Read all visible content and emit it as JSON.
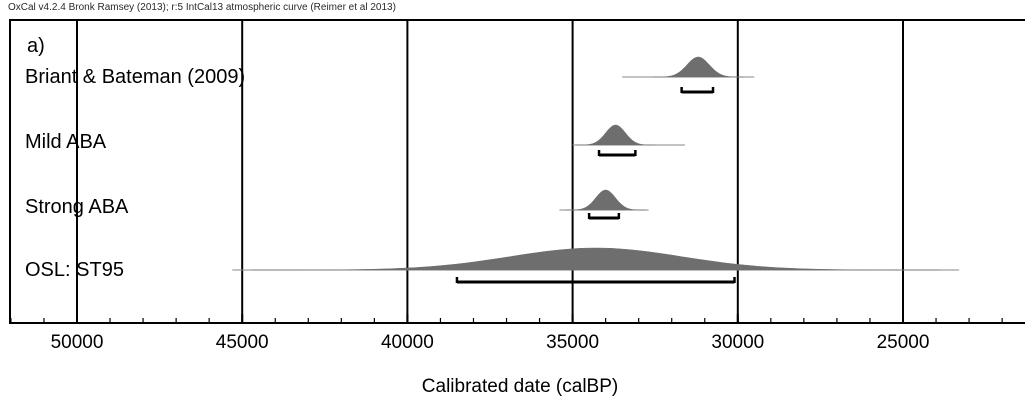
{
  "header": "OxCal v4.2.4 Bronk Ramsey (2013); r:5 IntCal13 atmospheric curve (Reimer et al 2013)",
  "panel_label": "a)",
  "chart_data": {
    "type": "ridge",
    "xlabel": "Calibrated date (calBP)",
    "xlim": [
      52000,
      21500
    ],
    "x_reversed": true,
    "major_ticks": [
      50000,
      45000,
      40000,
      35000,
      30000,
      25000
    ],
    "minor_tick_step": 1000,
    "grid": "vertical-major",
    "distributions": [
      {
        "name": "Briant & Bateman (2009)",
        "mean": 31200,
        "sd": 340,
        "tail_range": [
          33500,
          29500
        ],
        "range_95": [
          31700,
          30750
        ],
        "color": "#6e6e6e"
      },
      {
        "name": "Mild ABA",
        "mean": 33700,
        "sd": 300,
        "tail_range": [
          35000,
          31600
        ],
        "range_95": [
          34200,
          33100
        ],
        "color": "#6e6e6e"
      },
      {
        "name": "Strong ABA",
        "mean": 34000,
        "sd": 300,
        "tail_range": [
          35400,
          32700
        ],
        "range_95": [
          34500,
          33600
        ],
        "color": "#6e6e6e"
      },
      {
        "name": "OSL: ST95",
        "mean": 34300,
        "sd": 2600,
        "tail_range": [
          45300,
          23300
        ],
        "range_95": [
          38500,
          30100
        ],
        "color": "#6e6e6e"
      }
    ]
  }
}
